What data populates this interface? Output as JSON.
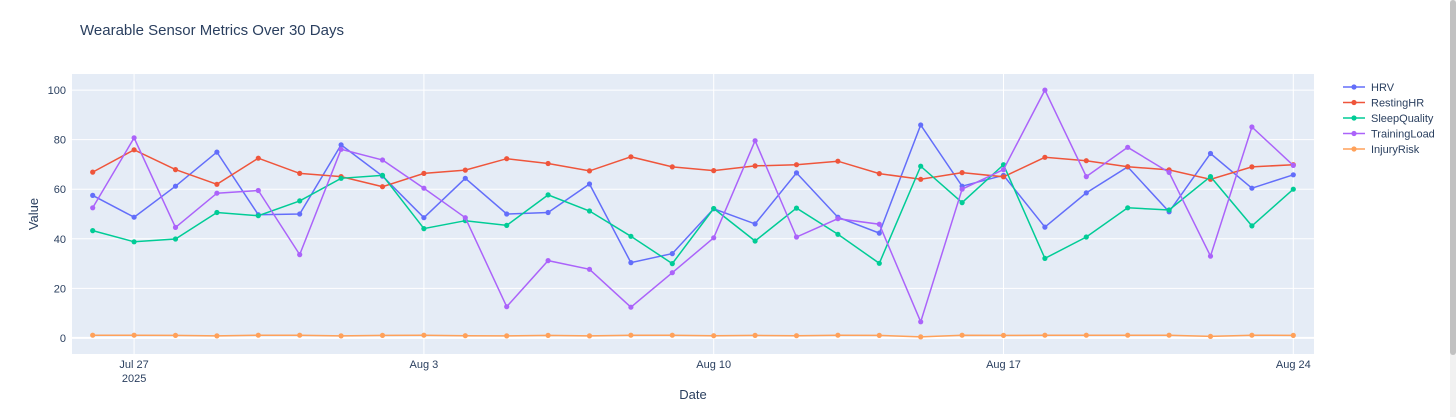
{
  "chart_data": {
    "type": "line",
    "title": "Wearable Sensor Metrics Over 30 Days",
    "xlabel": "Date",
    "ylabel": "Value",
    "ylim": [
      -6.5,
      106.5
    ],
    "x": [
      "2025-07-26",
      "2025-07-27",
      "2025-07-28",
      "2025-07-29",
      "2025-07-30",
      "2025-07-31",
      "2025-08-01",
      "2025-08-02",
      "2025-08-03",
      "2025-08-04",
      "2025-08-05",
      "2025-08-06",
      "2025-08-07",
      "2025-08-08",
      "2025-08-09",
      "2025-08-10",
      "2025-08-11",
      "2025-08-12",
      "2025-08-13",
      "2025-08-14",
      "2025-08-15",
      "2025-08-16",
      "2025-08-17",
      "2025-08-18",
      "2025-08-19",
      "2025-08-20",
      "2025-08-21",
      "2025-08-22",
      "2025-08-23",
      "2025-08-24"
    ],
    "x_ticks": [
      {
        "date": "2025-07-27",
        "label": "Jul 27",
        "sub": "2025"
      },
      {
        "date": "2025-08-03",
        "label": "Aug 3",
        "sub": ""
      },
      {
        "date": "2025-08-10",
        "label": "Aug 10",
        "sub": ""
      },
      {
        "date": "2025-08-17",
        "label": "Aug 17",
        "sub": ""
      },
      {
        "date": "2025-08-24",
        "label": "Aug 24",
        "sub": ""
      }
    ],
    "y_ticks": [
      0,
      20,
      40,
      60,
      80,
      100
    ],
    "grid": true,
    "legend_position": "right",
    "series": [
      {
        "name": "HRV",
        "color": "#636efa",
        "values": [
          57.5,
          48.7,
          61.2,
          75,
          49.7,
          50,
          77.9,
          65.3,
          48.5,
          64.4,
          50,
          50.6,
          62.1,
          30.4,
          34,
          52.1,
          46,
          66.6,
          48.7,
          42.3,
          85.9,
          61.2,
          65.6,
          44.7,
          58.5,
          69,
          50.9,
          74.4,
          60.4,
          65.8
        ]
      },
      {
        "name": "RestingHR",
        "color": "#ef553b",
        "values": [
          66.9,
          75.9,
          67.9,
          62,
          72.5,
          66.4,
          65.1,
          61,
          66.4,
          67.7,
          72.3,
          70.4,
          67.4,
          73.1,
          69,
          67.5,
          69.4,
          69.9,
          71.3,
          66.3,
          64,
          66.7,
          65,
          72.9,
          71.5,
          69.1,
          67.8,
          64,
          69,
          69.9
        ]
      },
      {
        "name": "SleepQuality",
        "color": "#00cc96",
        "values": [
          43.3,
          38.8,
          39.9,
          50.6,
          49.3,
          55.3,
          64.4,
          65.6,
          44.1,
          47.3,
          45.4,
          57.7,
          51.2,
          41,
          30,
          52.2,
          39.1,
          52.4,
          41.8,
          30.1,
          69.3,
          54.6,
          69.9,
          32.1,
          40.7,
          52.5,
          51.6,
          65.1,
          45.2,
          60
        ]
      },
      {
        "name": "TrainingLoad",
        "color": "#ab63fa",
        "values": [
          52.5,
          80.7,
          44.6,
          58.4,
          59.5,
          33.6,
          76.1,
          71.8,
          60.4,
          48.5,
          12.6,
          31.2,
          27.7,
          12.4,
          26.3,
          40.4,
          79.6,
          40.7,
          48.1,
          45.9,
          6.5,
          60,
          67.9,
          100,
          65.1,
          76.9,
          66.8,
          33,
          85.1,
          69.6
        ]
      },
      {
        "name": "InjuryRisk",
        "color": "#ffa15a",
        "values": [
          1.1,
          1.1,
          1,
          0.8,
          1.1,
          1.1,
          0.8,
          1,
          1.1,
          0.9,
          0.8,
          1,
          0.8,
          1.1,
          1.1,
          0.9,
          1,
          0.9,
          1.1,
          1,
          0.4,
          1.1,
          1,
          1.1,
          1.1,
          1.1,
          1.1,
          0.6,
          1.1,
          1
        ]
      }
    ]
  }
}
